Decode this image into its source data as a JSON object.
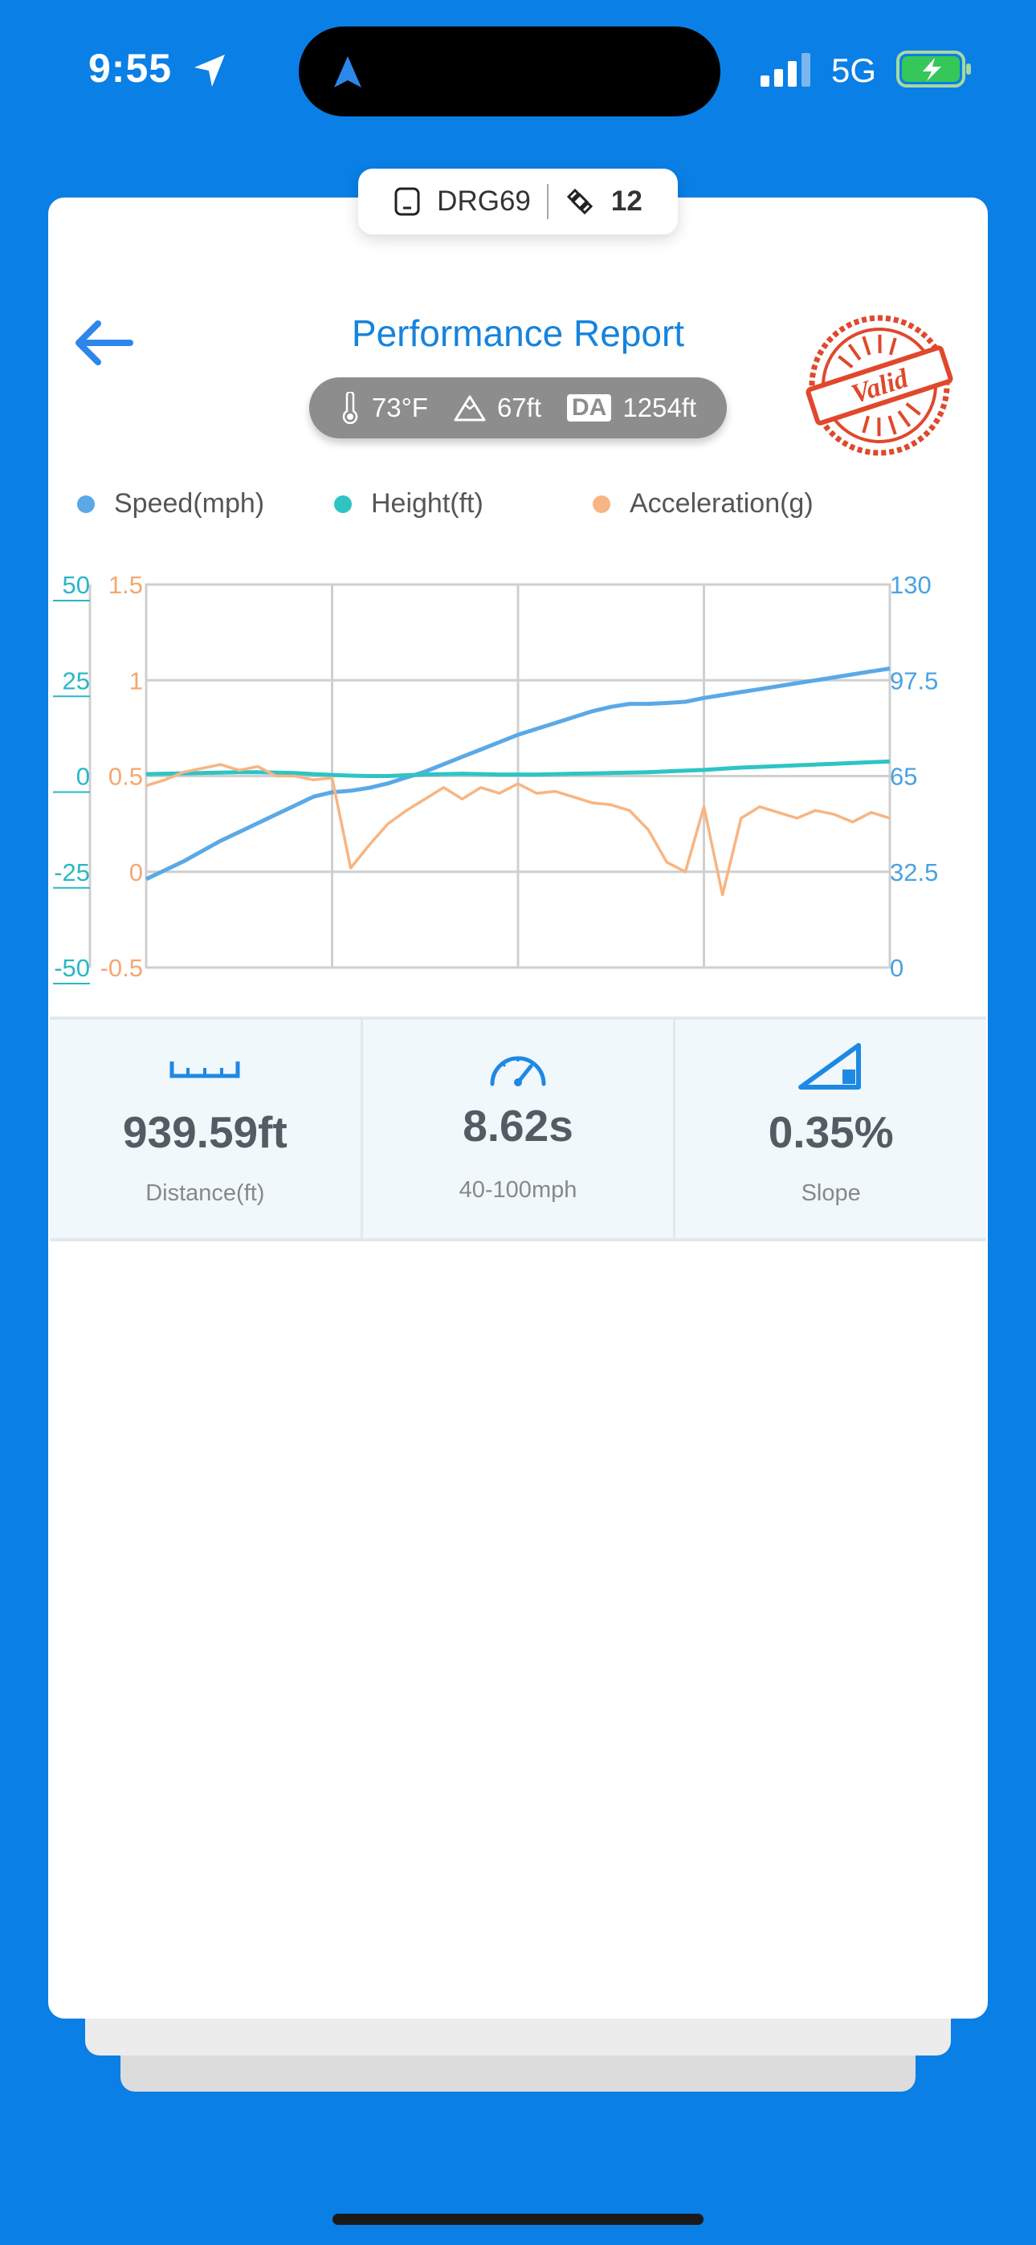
{
  "status_bar": {
    "time": "9:55",
    "network": "5G",
    "colors": {
      "battery": "#35c759"
    }
  },
  "device": {
    "name": "DRG69",
    "satellites": "12"
  },
  "header": {
    "title": "Performance Report",
    "stamp_text": "Valid"
  },
  "conditions": {
    "temperature": "73°F",
    "altitude": "67ft",
    "da_label": "DA",
    "density_altitude": "1254ft"
  },
  "legend": [
    {
      "label": "Speed(mph)",
      "color": "#5aa9e6"
    },
    {
      "label": "Height(ft)",
      "color": "#2ec4c4"
    },
    {
      "label": "Acceleration(g)",
      "color": "#f7b583"
    }
  ],
  "chart_data": {
    "type": "line",
    "x": [
      0,
      0.5,
      1,
      1.5,
      2,
      2.5,
      3,
      3.5,
      4,
      4.5,
      5,
      5.5,
      6,
      6.5,
      7,
      7.5,
      8,
      8.5,
      9,
      9.5,
      10,
      10.5,
      11,
      11.5,
      12,
      12.5,
      13,
      13.5,
      14,
      14.5,
      15,
      15.5,
      16,
      16.5,
      17,
      17.5,
      18,
      18.5,
      19,
      19.5,
      20
    ],
    "xlim": [
      0,
      20
    ],
    "series": [
      {
        "name": "Speed(mph)",
        "axis": "right",
        "ylim": [
          0,
          130
        ],
        "values": [
          30,
          33,
          36,
          39.5,
          43,
          46,
          49,
          52,
          55,
          58,
          59.5,
          60,
          61,
          62.5,
          64.5,
          66.5,
          69,
          71.5,
          74,
          76.5,
          79,
          81,
          83,
          85,
          87,
          88.5,
          89.5,
          89.5,
          89.8,
          90.2,
          91.5,
          92.5,
          93.5,
          94.5,
          95.5,
          96.5,
          97.5,
          98.5,
          99.5,
          100.5,
          101.5
        ]
      },
      {
        "name": "Height(ft)",
        "axis": "left",
        "ylim": [
          -50,
          50
        ],
        "values": [
          0.5,
          0.6,
          0.7,
          0.8,
          0.9,
          1.0,
          1.0,
          0.9,
          0.8,
          0.5,
          0.3,
          0.1,
          0.0,
          0.0,
          0.2,
          0.4,
          0.5,
          0.6,
          0.5,
          0.4,
          0.4,
          0.4,
          0.5,
          0.6,
          0.7,
          0.8,
          0.9,
          1.0,
          1.2,
          1.4,
          1.6,
          1.9,
          2.2,
          2.4,
          2.6,
          2.8,
          3.0,
          3.2,
          3.4,
          3.6,
          3.8
        ]
      },
      {
        "name": "Acceleration(g)",
        "axis": "left2",
        "ylim": [
          -0.5,
          1.5
        ],
        "values": [
          0.45,
          0.48,
          0.52,
          0.54,
          0.56,
          0.53,
          0.55,
          0.5,
          0.5,
          0.48,
          0.49,
          0.02,
          0.14,
          0.25,
          0.32,
          0.38,
          0.44,
          0.38,
          0.44,
          0.41,
          0.46,
          0.41,
          0.42,
          0.39,
          0.36,
          0.35,
          0.32,
          0.22,
          0.05,
          0.0,
          0.34,
          -0.12,
          0.28,
          0.34,
          0.31,
          0.28,
          0.32,
          0.3,
          0.26,
          0.31,
          0.28
        ]
      }
    ],
    "y_axes": {
      "left": {
        "ticks": [
          "50",
          "25",
          "0",
          "-25",
          "-50"
        ]
      },
      "left2": {
        "ticks": [
          "1.5",
          "1",
          "0.5",
          "0",
          "-0.5"
        ]
      },
      "right": {
        "ticks": [
          "130",
          "97.5",
          "65",
          "32.5",
          "0"
        ]
      }
    },
    "grid": true,
    "legend": "top"
  },
  "stats": [
    {
      "value": "939.59ft",
      "label": "Distance(ft)",
      "icon": "ruler-icon"
    },
    {
      "value": "8.62s",
      "label": "40-100mph",
      "icon": "speedometer-icon"
    },
    {
      "value": "0.35%",
      "label": "Slope",
      "icon": "slope-icon"
    }
  ]
}
